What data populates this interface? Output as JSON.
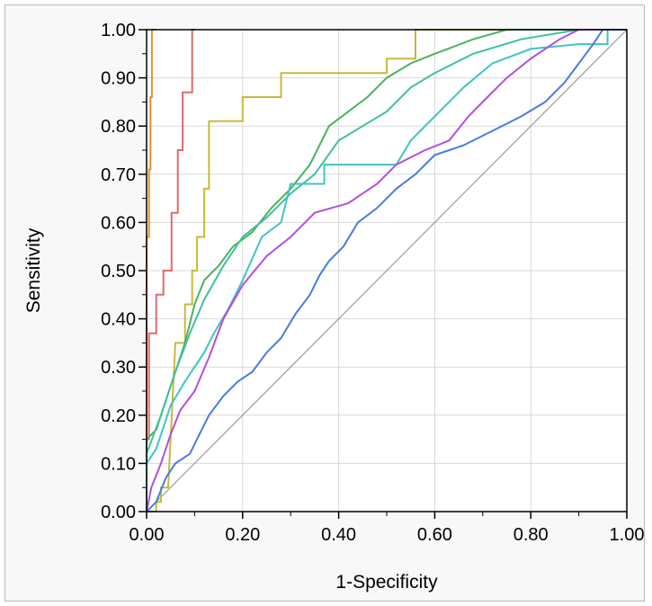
{
  "chart_data": {
    "type": "line",
    "title": "",
    "xlabel": "1-Specificity",
    "ylabel": "Sensitivity",
    "xlim": [
      0,
      1
    ],
    "ylim": [
      0,
      1
    ],
    "x_ticks": [
      "0.00",
      "0.20",
      "0.40",
      "0.60",
      "0.80",
      "1.00"
    ],
    "y_ticks": [
      "0.00",
      "0.10",
      "0.20",
      "0.30",
      "0.40",
      "0.50",
      "0.60",
      "0.70",
      "0.80",
      "0.90",
      "1.00"
    ],
    "grid": true,
    "reference_line": [
      [
        0,
        0
      ],
      [
        1,
        1
      ]
    ],
    "colors": {
      "background": "#ffffff",
      "frame": "#f8f8f8",
      "grid": "#d9d9d9",
      "reference": "#9a9a9a"
    },
    "series": [
      {
        "color": "#e8912a",
        "points": [
          [
            0,
            0
          ],
          [
            0,
            0.57
          ],
          [
            0.005,
            0.57
          ],
          [
            0.005,
            0.71
          ],
          [
            0.008,
            0.71
          ],
          [
            0.008,
            0.86
          ],
          [
            0.011,
            0.86
          ],
          [
            0.011,
            1.0
          ],
          [
            0.02,
            1.0
          ]
        ]
      },
      {
        "color": "#e06a6a",
        "points": [
          [
            0,
            0
          ],
          [
            0,
            0.15
          ],
          [
            0.005,
            0.15
          ],
          [
            0.005,
            0.37
          ],
          [
            0.02,
            0.37
          ],
          [
            0.02,
            0.45
          ],
          [
            0.035,
            0.45
          ],
          [
            0.035,
            0.5
          ],
          [
            0.052,
            0.5
          ],
          [
            0.052,
            0.62
          ],
          [
            0.065,
            0.62
          ],
          [
            0.065,
            0.75
          ],
          [
            0.075,
            0.75
          ],
          [
            0.075,
            0.87
          ],
          [
            0.095,
            0.87
          ],
          [
            0.095,
            1.0
          ],
          [
            0.1,
            1.0
          ]
        ]
      },
      {
        "color": "#c9b83a",
        "points": [
          [
            0,
            0
          ],
          [
            0.02,
            0
          ],
          [
            0.02,
            0.02
          ],
          [
            0.03,
            0.02
          ],
          [
            0.03,
            0.05
          ],
          [
            0.045,
            0.05
          ],
          [
            0.06,
            0.35
          ],
          [
            0.08,
            0.35
          ],
          [
            0.08,
            0.43
          ],
          [
            0.095,
            0.43
          ],
          [
            0.095,
            0.5
          ],
          [
            0.105,
            0.5
          ],
          [
            0.105,
            0.57
          ],
          [
            0.12,
            0.57
          ],
          [
            0.12,
            0.67
          ],
          [
            0.13,
            0.67
          ],
          [
            0.13,
            0.81
          ],
          [
            0.2,
            0.81
          ],
          [
            0.2,
            0.86
          ],
          [
            0.28,
            0.86
          ],
          [
            0.28,
            0.91
          ],
          [
            0.5,
            0.91
          ],
          [
            0.5,
            0.94
          ],
          [
            0.56,
            0.94
          ],
          [
            0.56,
            1.0
          ],
          [
            1.0,
            1.0
          ]
        ]
      },
      {
        "color": "#4ab35c",
        "points": [
          [
            0,
            0
          ],
          [
            0,
            0.15
          ],
          [
            0.02,
            0.17
          ],
          [
            0.05,
            0.26
          ],
          [
            0.08,
            0.35
          ],
          [
            0.1,
            0.43
          ],
          [
            0.12,
            0.48
          ],
          [
            0.15,
            0.51
          ],
          [
            0.18,
            0.55
          ],
          [
            0.22,
            0.58
          ],
          [
            0.26,
            0.63
          ],
          [
            0.3,
            0.67
          ],
          [
            0.34,
            0.72
          ],
          [
            0.38,
            0.8
          ],
          [
            0.42,
            0.83
          ],
          [
            0.46,
            0.86
          ],
          [
            0.5,
            0.9
          ],
          [
            0.55,
            0.93
          ],
          [
            0.6,
            0.95
          ],
          [
            0.68,
            0.98
          ],
          [
            0.75,
            1.0
          ],
          [
            1.0,
            1.0
          ]
        ]
      },
      {
        "color": "#3fbfa0",
        "points": [
          [
            0,
            0
          ],
          [
            0,
            0.12
          ],
          [
            0.03,
            0.2
          ],
          [
            0.06,
            0.29
          ],
          [
            0.09,
            0.37
          ],
          [
            0.12,
            0.44
          ],
          [
            0.16,
            0.51
          ],
          [
            0.2,
            0.57
          ],
          [
            0.25,
            0.61
          ],
          [
            0.3,
            0.66
          ],
          [
            0.35,
            0.7
          ],
          [
            0.4,
            0.77
          ],
          [
            0.45,
            0.8
          ],
          [
            0.5,
            0.83
          ],
          [
            0.55,
            0.88
          ],
          [
            0.6,
            0.91
          ],
          [
            0.68,
            0.95
          ],
          [
            0.78,
            0.98
          ],
          [
            0.9,
            1.0
          ],
          [
            1.0,
            1.0
          ]
        ]
      },
      {
        "color": "#3fc4c4",
        "points": [
          [
            0,
            0
          ],
          [
            0,
            0.1
          ],
          [
            0.02,
            0.13
          ],
          [
            0.05,
            0.22
          ],
          [
            0.08,
            0.27
          ],
          [
            0.12,
            0.33
          ],
          [
            0.14,
            0.37
          ],
          [
            0.17,
            0.42
          ],
          [
            0.2,
            0.48
          ],
          [
            0.24,
            0.57
          ],
          [
            0.28,
            0.6
          ],
          [
            0.3,
            0.68
          ],
          [
            0.37,
            0.68
          ],
          [
            0.37,
            0.72
          ],
          [
            0.52,
            0.72
          ],
          [
            0.55,
            0.77
          ],
          [
            0.6,
            0.82
          ],
          [
            0.66,
            0.88
          ],
          [
            0.72,
            0.93
          ],
          [
            0.8,
            0.96
          ],
          [
            0.9,
            0.97
          ],
          [
            0.96,
            0.97
          ],
          [
            0.96,
            1.0
          ],
          [
            1.0,
            1.0
          ]
        ]
      },
      {
        "color": "#b34ee0",
        "points": [
          [
            0,
            0
          ],
          [
            0.01,
            0.05
          ],
          [
            0.03,
            0.1
          ],
          [
            0.05,
            0.16
          ],
          [
            0.07,
            0.21
          ],
          [
            0.1,
            0.25
          ],
          [
            0.13,
            0.32
          ],
          [
            0.16,
            0.4
          ],
          [
            0.2,
            0.47
          ],
          [
            0.25,
            0.53
          ],
          [
            0.3,
            0.57
          ],
          [
            0.35,
            0.62
          ],
          [
            0.42,
            0.64
          ],
          [
            0.48,
            0.68
          ],
          [
            0.52,
            0.72
          ],
          [
            0.58,
            0.75
          ],
          [
            0.63,
            0.77
          ],
          [
            0.67,
            0.82
          ],
          [
            0.71,
            0.86
          ],
          [
            0.75,
            0.9
          ],
          [
            0.8,
            0.94
          ],
          [
            0.86,
            0.98
          ],
          [
            0.9,
            1.0
          ],
          [
            1.0,
            1.0
          ]
        ]
      },
      {
        "color": "#4a7be0",
        "points": [
          [
            0,
            0
          ],
          [
            0.02,
            0.02
          ],
          [
            0.04,
            0.07
          ],
          [
            0.06,
            0.1
          ],
          [
            0.09,
            0.12
          ],
          [
            0.11,
            0.16
          ],
          [
            0.13,
            0.2
          ],
          [
            0.16,
            0.24
          ],
          [
            0.19,
            0.27
          ],
          [
            0.22,
            0.29
          ],
          [
            0.25,
            0.33
          ],
          [
            0.28,
            0.36
          ],
          [
            0.31,
            0.41
          ],
          [
            0.34,
            0.45
          ],
          [
            0.36,
            0.49
          ],
          [
            0.38,
            0.52
          ],
          [
            0.41,
            0.55
          ],
          [
            0.44,
            0.6
          ],
          [
            0.48,
            0.63
          ],
          [
            0.52,
            0.67
          ],
          [
            0.56,
            0.7
          ],
          [
            0.6,
            0.74
          ],
          [
            0.66,
            0.76
          ],
          [
            0.72,
            0.79
          ],
          [
            0.78,
            0.82
          ],
          [
            0.83,
            0.85
          ],
          [
            0.87,
            0.89
          ],
          [
            0.9,
            0.93
          ],
          [
            0.93,
            0.97
          ],
          [
            0.95,
            1.0
          ],
          [
            1.0,
            1.0
          ]
        ]
      }
    ]
  }
}
